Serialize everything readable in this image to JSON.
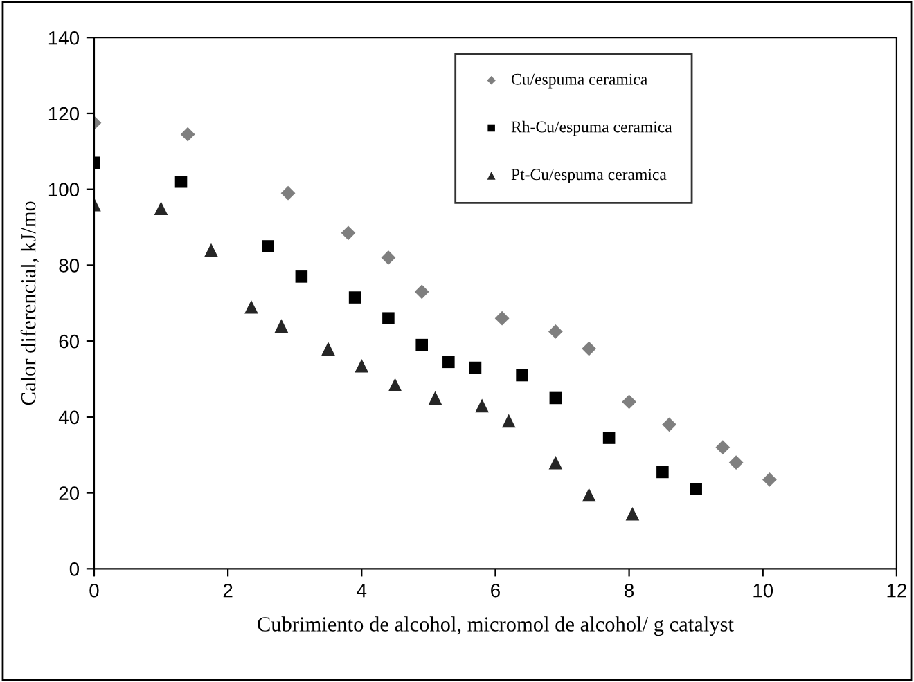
{
  "chart_data": {
    "type": "scatter",
    "xlabel": "Cubrimiento de alcohol, micromol de alcohol/ g catalyst",
    "ylabel": "Calor diferencial, kJ/mo",
    "xlim": [
      0,
      12
    ],
    "xticks": [
      0,
      2,
      4,
      6,
      8,
      10,
      12
    ],
    "ylim": [
      0,
      140
    ],
    "yticks": [
      0,
      20,
      40,
      60,
      80,
      100,
      120,
      140
    ],
    "grid": false,
    "legend": "top",
    "series": [
      {
        "name": "Cu/espuma ceramica",
        "color": "#7f7f7f",
        "marker": "diamond",
        "x": [
          0,
          1.4,
          2.9,
          3.8,
          4.4,
          4.9,
          6.1,
          6.9,
          7.4,
          8.0,
          8.6,
          9.4,
          9.6,
          10.1
        ],
        "values": [
          117.5,
          114.5,
          99,
          88.5,
          82,
          73,
          66,
          62.5,
          58,
          44,
          38,
          32,
          28,
          23.5
        ]
      },
      {
        "name": "Rh-Cu/espuma ceramica",
        "color": "#000000",
        "marker": "square",
        "x": [
          0,
          1.3,
          2.6,
          3.1,
          3.9,
          4.4,
          4.9,
          5.3,
          5.7,
          6.4,
          6.9,
          7.7,
          8.5,
          9.0
        ],
        "values": [
          107,
          102,
          85,
          77,
          71.5,
          66,
          59,
          54.5,
          53,
          51,
          45,
          34.5,
          25.5,
          21
        ]
      },
      {
        "name": "Pt-Cu/espuma ceramica",
        "color": "#262626",
        "marker": "triangle",
        "x": [
          0,
          1.0,
          1.75,
          2.35,
          2.8,
          3.5,
          4.0,
          4.5,
          5.1,
          5.8,
          6.2,
          6.9,
          7.4,
          8.05
        ],
        "values": [
          96,
          95,
          84,
          69,
          64,
          58,
          53.5,
          48.5,
          45,
          43,
          39,
          28,
          19.5,
          14.5
        ]
      }
    ]
  }
}
